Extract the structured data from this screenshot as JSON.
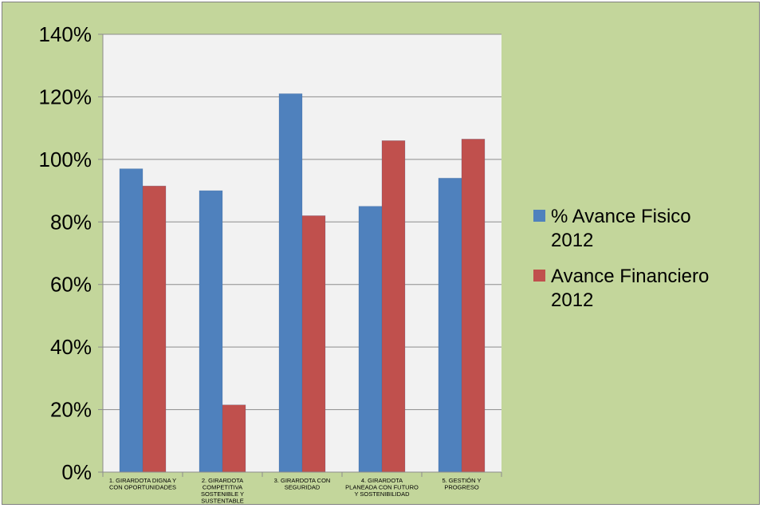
{
  "chart_data": {
    "type": "bar",
    "categories": [
      [
        "1.  GIRARDOTA DIGNA Y",
        "CON OPORTUNIDADES"
      ],
      [
        "2. GIRARDOTA",
        "COMPETITIVA",
        "SOSTENIBLE Y",
        "SUSTENTABLE"
      ],
      [
        "3. GIRARDOTA CON",
        "SEGURIDAD"
      ],
      [
        "4. GIRARDOTA",
        "PLANEADA CON FUTURO",
        "Y SOSTENIBILIDAD"
      ],
      [
        "5. GESTIÓN Y",
        "PROGRESO"
      ]
    ],
    "series": [
      {
        "name": [
          "% Avance   Fisico",
          "2012"
        ],
        "color": "#4f81bd",
        "values": [
          0.97,
          0.9,
          1.21,
          0.85,
          0.94
        ]
      },
      {
        "name": [
          "Avance Financiero",
          "2012"
        ],
        "color": "#c0504d",
        "values": [
          0.915,
          0.215,
          0.82,
          1.06,
          1.065
        ]
      }
    ],
    "yticks": [
      "0%",
      "20%",
      "40%",
      "60%",
      "80%",
      "100%",
      "120%",
      "140%"
    ],
    "ylim": [
      0,
      1.4
    ],
    "grid": true,
    "legend_position": "right",
    "plot_background": "#f2f2f2",
    "chart_background": "#c3d69b"
  }
}
